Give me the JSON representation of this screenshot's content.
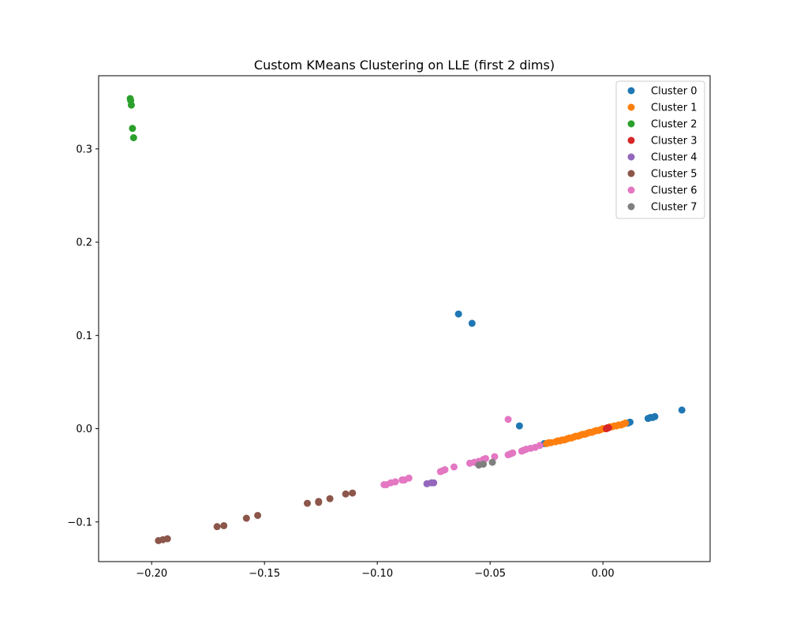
{
  "chart_data": {
    "type": "scatter",
    "title": "Custom KMeans Clustering on LLE (first 2 dims)",
    "xlabel": "",
    "ylabel": "",
    "xlim": [
      -0.2235,
      0.0475
    ],
    "ylim": [
      -0.1425,
      0.3785
    ],
    "xticks": [
      {
        "value": -0.2,
        "label": "−0.20"
      },
      {
        "value": -0.15,
        "label": "−0.15"
      },
      {
        "value": -0.1,
        "label": "−0.10"
      },
      {
        "value": -0.05,
        "label": "−0.05"
      },
      {
        "value": 0.0,
        "label": "0.00"
      }
    ],
    "yticks": [
      {
        "value": -0.1,
        "label": "−0.1"
      },
      {
        "value": 0.0,
        "label": "0.0"
      },
      {
        "value": 0.1,
        "label": "0.1"
      },
      {
        "value": 0.2,
        "label": "0.2"
      },
      {
        "value": 0.3,
        "label": "0.3"
      }
    ],
    "legend_position": "top-right",
    "series": [
      {
        "name": "Cluster 0",
        "color": "#1f77b4",
        "points": [
          [
            -0.064,
            0.123
          ],
          [
            -0.058,
            0.113
          ],
          [
            -0.037,
            0.003
          ],
          [
            0.035,
            0.02
          ],
          [
            0.023,
            0.013
          ],
          [
            0.022,
            0.012
          ],
          [
            0.021,
            0.012
          ],
          [
            0.02,
            0.011
          ],
          [
            0.012,
            0.007
          ],
          [
            0.011,
            0.006
          ],
          [
            -0.026,
            -0.016
          ]
        ]
      },
      {
        "name": "Cluster 1",
        "color": "#ff7f0e",
        "points": [
          [
            -0.025,
            -0.016
          ],
          [
            -0.023,
            -0.015
          ],
          [
            -0.021,
            -0.014
          ],
          [
            -0.019,
            -0.013
          ],
          [
            -0.017,
            -0.012
          ],
          [
            -0.015,
            -0.01
          ],
          [
            -0.013,
            -0.009
          ],
          [
            -0.011,
            -0.008
          ],
          [
            -0.009,
            -0.006
          ],
          [
            -0.007,
            -0.005
          ],
          [
            -0.005,
            -0.004
          ],
          [
            -0.003,
            -0.002
          ],
          [
            -0.001,
            -0.001
          ],
          [
            0.001,
            0.0
          ],
          [
            0.003,
            0.002
          ],
          [
            0.005,
            0.003
          ],
          [
            0.007,
            0.004
          ],
          [
            0.009,
            0.005
          ],
          [
            0.01,
            0.006
          ],
          [
            -0.02,
            -0.013
          ],
          [
            -0.016,
            -0.011
          ],
          [
            -0.012,
            -0.008
          ],
          [
            -0.008,
            -0.006
          ],
          [
            -0.004,
            -0.003
          ],
          [
            0.0,
            0.0
          ],
          [
            0.004,
            0.002
          ],
          [
            0.008,
            0.004
          ],
          [
            -0.024,
            -0.015
          ],
          [
            -0.018,
            -0.012
          ],
          [
            -0.014,
            -0.01
          ],
          [
            -0.01,
            -0.007
          ],
          [
            -0.006,
            -0.004
          ],
          [
            -0.002,
            -0.002
          ],
          [
            0.002,
            0.001
          ],
          [
            0.006,
            0.003
          ]
        ]
      },
      {
        "name": "Cluster 2",
        "color": "#2ca02c",
        "points": [
          [
            -0.2095,
            0.354
          ],
          [
            -0.2093,
            0.352
          ],
          [
            -0.209,
            0.347
          ],
          [
            -0.2085,
            0.322
          ],
          [
            -0.208,
            0.312
          ]
        ]
      },
      {
        "name": "Cluster 3",
        "color": "#d62728",
        "points": [
          [
            0.002,
            0.001
          ],
          [
            0.0015,
            0.0
          ],
          [
            0.0025,
            0.001
          ]
        ]
      },
      {
        "name": "Cluster 4",
        "color": "#9467bd",
        "points": [
          [
            -0.078,
            -0.059
          ],
          [
            -0.076,
            -0.058
          ],
          [
            -0.075,
            -0.058
          ]
        ]
      },
      {
        "name": "Cluster 5",
        "color": "#8c564b",
        "points": [
          [
            -0.197,
            -0.12
          ],
          [
            -0.195,
            -0.119
          ],
          [
            -0.193,
            -0.118
          ],
          [
            -0.171,
            -0.105
          ],
          [
            -0.168,
            -0.104
          ],
          [
            -0.158,
            -0.096
          ],
          [
            -0.153,
            -0.093
          ],
          [
            -0.131,
            -0.08
          ],
          [
            -0.126,
            -0.078
          ],
          [
            -0.126,
            -0.079
          ],
          [
            -0.121,
            -0.075
          ],
          [
            -0.114,
            -0.07
          ],
          [
            -0.111,
            -0.069
          ]
        ]
      },
      {
        "name": "Cluster 6",
        "color": "#e377c2",
        "points": [
          [
            -0.097,
            -0.06
          ],
          [
            -0.096,
            -0.06
          ],
          [
            -0.094,
            -0.058
          ],
          [
            -0.092,
            -0.057
          ],
          [
            -0.089,
            -0.055
          ],
          [
            -0.088,
            -0.055
          ],
          [
            -0.086,
            -0.053
          ],
          [
            -0.072,
            -0.046
          ],
          [
            -0.071,
            -0.045
          ],
          [
            -0.07,
            -0.044
          ],
          [
            -0.066,
            -0.041
          ],
          [
            -0.059,
            -0.037
          ],
          [
            -0.057,
            -0.036
          ],
          [
            -0.055,
            -0.035
          ],
          [
            -0.053,
            -0.033
          ],
          [
            -0.052,
            -0.032
          ],
          [
            -0.048,
            -0.03
          ],
          [
            -0.042,
            -0.028
          ],
          [
            -0.041,
            -0.027
          ],
          [
            -0.04,
            -0.026
          ],
          [
            -0.036,
            -0.024
          ],
          [
            -0.035,
            -0.023
          ],
          [
            -0.034,
            -0.022
          ],
          [
            -0.032,
            -0.021
          ],
          [
            -0.03,
            -0.02
          ],
          [
            -0.028,
            -0.018
          ],
          [
            -0.042,
            0.01
          ]
        ]
      },
      {
        "name": "Cluster 7",
        "color": "#7f7f7f",
        "points": [
          [
            -0.055,
            -0.039
          ],
          [
            -0.053,
            -0.038
          ],
          [
            -0.049,
            -0.036
          ]
        ]
      }
    ]
  }
}
